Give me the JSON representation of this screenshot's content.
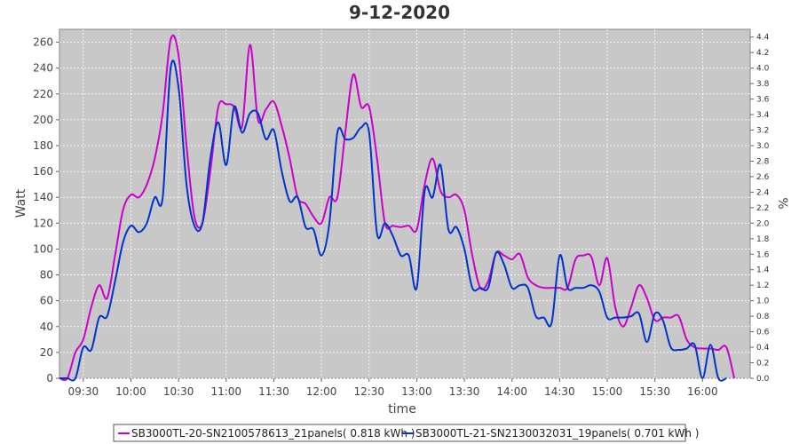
{
  "chart_data": {
    "type": "line",
    "title": "9-12-2020",
    "xlabel": "time",
    "ylabel": "Watt",
    "y2label": "%",
    "xlim": [
      "09:15",
      "16:30"
    ],
    "ylim": [
      0,
      270
    ],
    "y2lim": [
      0,
      4.5
    ],
    "x_ticks": [
      "09:30",
      "10:00",
      "10:30",
      "11:00",
      "11:30",
      "12:00",
      "12:30",
      "13:00",
      "13:30",
      "14:00",
      "14:30",
      "15:00",
      "15:30",
      "16:00"
    ],
    "y_ticks": [
      0,
      20,
      40,
      60,
      80,
      100,
      120,
      140,
      160,
      180,
      200,
      220,
      240,
      260
    ],
    "y2_ticks": [
      "0.0",
      "0.2",
      "0.4",
      "0.6",
      "0.8",
      "1.0",
      "1.2",
      "1.4",
      "1.6",
      "1.8",
      "2.0",
      "2.2",
      "2.4",
      "2.6",
      "2.8",
      "3.0",
      "3.2",
      "3.4",
      "3.6",
      "3.8",
      "4.0",
      "4.2",
      "4.4"
    ],
    "grid": true,
    "legend_position": "bottom",
    "series": [
      {
        "name": "SB3000TL-20-SN2100578613_21panels( 0.818 kWh )",
        "color": "#cc00cc",
        "x": [
          "09:15",
          "09:20",
          "09:25",
          "09:30",
          "09:35",
          "09:40",
          "09:45",
          "09:50",
          "09:55",
          "10:00",
          "10:05",
          "10:10",
          "10:15",
          "10:20",
          "10:25",
          "10:30",
          "10:35",
          "10:40",
          "10:45",
          "10:50",
          "10:55",
          "11:00",
          "11:05",
          "11:10",
          "11:15",
          "11:20",
          "11:25",
          "11:30",
          "11:35",
          "11:40",
          "11:45",
          "11:50",
          "11:55",
          "12:00",
          "12:05",
          "12:10",
          "12:15",
          "12:20",
          "12:25",
          "12:30",
          "12:35",
          "12:40",
          "12:45",
          "12:50",
          "12:55",
          "13:00",
          "13:05",
          "13:10",
          "13:15",
          "13:20",
          "13:25",
          "13:30",
          "13:35",
          "13:40",
          "13:45",
          "13:50",
          "13:55",
          "14:00",
          "14:05",
          "14:10",
          "14:15",
          "14:20",
          "14:25",
          "14:30",
          "14:35",
          "14:40",
          "14:45",
          "14:50",
          "14:55",
          "15:00",
          "15:05",
          "15:10",
          "15:15",
          "15:20",
          "15:25",
          "15:30",
          "15:35",
          "15:40",
          "15:45",
          "15:50",
          "15:55",
          "16:00",
          "16:05",
          "16:10",
          "16:15",
          "16:20"
        ],
        "y": [
          0,
          0,
          20,
          30,
          55,
          72,
          62,
          95,
          130,
          142,
          140,
          150,
          170,
          205,
          262,
          250,
          180,
          125,
          120,
          160,
          210,
          212,
          210,
          195,
          258,
          200,
          208,
          214,
          195,
          170,
          140,
          135,
          125,
          120,
          140,
          140,
          190,
          235,
          210,
          210,
          170,
          120,
          118,
          117,
          118,
          115,
          150,
          170,
          145,
          140,
          142,
          130,
          95,
          70,
          75,
          97,
          95,
          92,
          96,
          78,
          72,
          70,
          70,
          70,
          70,
          92,
          95,
          94,
          72,
          93,
          55,
          40,
          55,
          72,
          62,
          45,
          47,
          47,
          48,
          30,
          24,
          23,
          23,
          22,
          24,
          0
        ]
      },
      {
        "name": "SB3000TL-21-SN2130032031_19panels( 0.701 kWh )",
        "color": "#0033cc",
        "x": [
          "09:15",
          "09:20",
          "09:25",
          "09:30",
          "09:35",
          "09:40",
          "09:45",
          "09:50",
          "09:55",
          "10:00",
          "10:05",
          "10:10",
          "10:15",
          "10:20",
          "10:25",
          "10:30",
          "10:35",
          "10:40",
          "10:45",
          "10:50",
          "10:55",
          "11:00",
          "11:05",
          "11:10",
          "11:15",
          "11:20",
          "11:25",
          "11:30",
          "11:35",
          "11:40",
          "11:45",
          "11:50",
          "11:55",
          "12:00",
          "12:05",
          "12:10",
          "12:15",
          "12:20",
          "12:25",
          "12:30",
          "12:35",
          "12:40",
          "12:45",
          "12:50",
          "12:55",
          "13:00",
          "13:05",
          "13:10",
          "13:15",
          "13:20",
          "13:25",
          "13:30",
          "13:35",
          "13:40",
          "13:45",
          "13:50",
          "13:55",
          "14:00",
          "14:05",
          "14:10",
          "14:15",
          "14:20",
          "14:25",
          "14:30",
          "14:35",
          "14:40",
          "14:45",
          "14:50",
          "14:55",
          "15:00",
          "15:05",
          "15:10",
          "15:15",
          "15:20",
          "15:25",
          "15:30",
          "15:35",
          "15:40",
          "15:45",
          "15:50",
          "15:55",
          "16:00",
          "16:05",
          "16:10",
          "16:15"
        ],
        "y": [
          0,
          0,
          0,
          24,
          22,
          47,
          48,
          75,
          105,
          118,
          113,
          120,
          140,
          140,
          240,
          225,
          150,
          118,
          120,
          170,
          198,
          165,
          210,
          190,
          205,
          205,
          185,
          192,
          160,
          137,
          140,
          117,
          115,
          95,
          120,
          190,
          185,
          186,
          194,
          190,
          112,
          120,
          110,
          95,
          95,
          70,
          145,
          140,
          165,
          115,
          117,
          100,
          70,
          70,
          70,
          97,
          88,
          70,
          72,
          70,
          48,
          47,
          43,
          95,
          70,
          70,
          70,
          72,
          67,
          47,
          47,
          47,
          48,
          50,
          28,
          50,
          45,
          24,
          22,
          23,
          26,
          0,
          26,
          0,
          0
        ]
      }
    ]
  }
}
